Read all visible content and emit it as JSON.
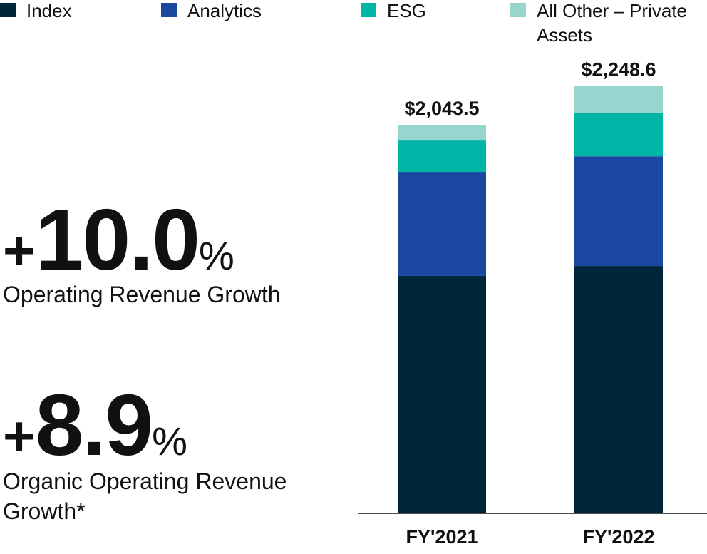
{
  "chart_data": {
    "type": "stacked_bar",
    "categories": [
      "FY'2021",
      "FY'2022"
    ],
    "series": [
      {
        "name": "Index",
        "color": "#002639",
        "values": [
          1249,
          1301
        ]
      },
      {
        "name": "Analytics",
        "color": "#1a47a0",
        "values": [
          547,
          577
        ]
      },
      {
        "name": "ESG",
        "color": "#00b5a6",
        "values": [
          165,
          229
        ]
      },
      {
        "name": "All Other – Private Assets",
        "color": "#97d6cf",
        "values": [
          82.5,
          141.6
        ]
      }
    ],
    "totals": {
      "values": [
        2043.5,
        2248.6
      ],
      "value_labels": [
        "$2,043.5",
        "$2,248.6"
      ]
    },
    "ylim": [
      0,
      2400
    ]
  },
  "stats": [
    {
      "prefix": "+",
      "value": 10.0,
      "value_label": "10.0",
      "unit": "%",
      "label": "Operating Revenue Growth"
    },
    {
      "prefix": "+",
      "value": 8.9,
      "value_label": "8.9",
      "unit": "%",
      "label": "Organic Operating Revenue Growth*"
    }
  ]
}
